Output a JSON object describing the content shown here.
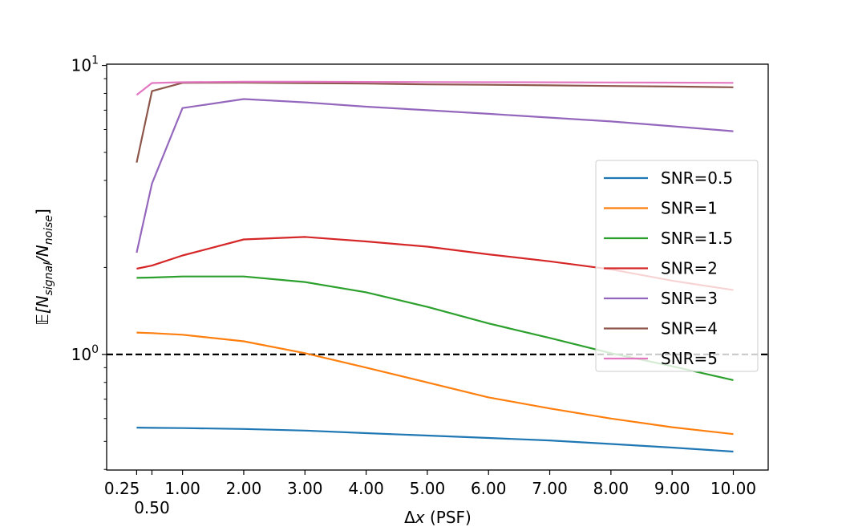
{
  "chart_data": {
    "type": "line",
    "title": "",
    "xlabel": "Δx (PSF)",
    "ylabel": "𝔼[N_signal/N_noise]",
    "ylabel_parts": {
      "prefix": "𝔼[N",
      "sub1": "signal",
      "mid": "/N",
      "sub2": "noise",
      "suffix": "]"
    },
    "xlabel_parts": {
      "delta": "Δ",
      "var": "x",
      "rest": " (PSF)"
    },
    "yscale": "log",
    "xlim": [
      -0.24,
      10.57
    ],
    "ylim": [
      0.398,
      10.1
    ],
    "x": [
      0.25,
      0.5,
      1,
      2,
      3,
      4,
      5,
      6,
      7,
      8,
      9,
      10
    ],
    "xticks": [
      0.25,
      0.5,
      1,
      2,
      3,
      4,
      5,
      6,
      7,
      8,
      9,
      10
    ],
    "xtick_labels": [
      "0.25",
      "0.50",
      "1.00",
      "2.00",
      "3.00",
      "4.00",
      "5.00",
      "6.00",
      "7.00",
      "8.00",
      "9.00",
      "10.00"
    ],
    "yticks_major": [
      {
        "value": 1,
        "base": "10",
        "exp": "0"
      },
      {
        "value": 10,
        "base": "10",
        "exp": "1"
      }
    ],
    "reference_line": {
      "y": 1,
      "style": "dashed",
      "color": "#000000"
    },
    "legend_position": "center-right",
    "grid": false,
    "series": [
      {
        "name": "SNR=0.5",
        "color": "#1f77b4",
        "values": [
          0.558,
          0.557,
          0.556,
          0.552,
          0.545,
          0.534,
          0.524,
          0.514,
          0.504,
          0.49,
          0.476,
          0.461
        ]
      },
      {
        "name": "SNR=1",
        "color": "#ff7f0e",
        "values": [
          1.19,
          1.185,
          1.17,
          1.11,
          1.01,
          0.9,
          0.8,
          0.71,
          0.65,
          0.6,
          0.56,
          0.53
        ]
      },
      {
        "name": "SNR=1.5",
        "color": "#2ca02c",
        "values": [
          1.84,
          1.845,
          1.86,
          1.86,
          1.78,
          1.64,
          1.46,
          1.28,
          1.14,
          1.01,
          0.91,
          0.815
        ]
      },
      {
        "name": "SNR=2",
        "color": "#d62728",
        "values": [
          1.98,
          2.03,
          2.2,
          2.5,
          2.55,
          2.46,
          2.36,
          2.22,
          2.1,
          1.97,
          1.8,
          1.67
        ]
      },
      {
        "name": "SNR=3",
        "color": "#9467bd",
        "values": [
          2.25,
          3.9,
          7.12,
          7.65,
          7.45,
          7.2,
          7.0,
          6.8,
          6.6,
          6.4,
          6.16,
          5.92
        ]
      },
      {
        "name": "SNR=4",
        "color": "#8c564b",
        "values": [
          4.61,
          8.15,
          8.7,
          8.72,
          8.68,
          8.65,
          8.6,
          8.57,
          8.53,
          8.49,
          8.45,
          8.4
        ]
      },
      {
        "name": "SNR=5",
        "color": "#e377c2",
        "values": [
          7.9,
          8.69,
          8.75,
          8.78,
          8.78,
          8.77,
          8.76,
          8.75,
          8.74,
          8.73,
          8.72,
          8.7
        ]
      }
    ]
  }
}
